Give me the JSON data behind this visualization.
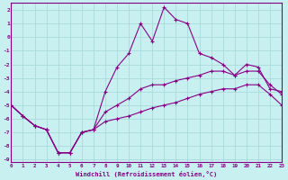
{
  "xlabel": "Windchill (Refroidissement éolien,°C)",
  "background_color": "#c8f0f0",
  "grid_color": "#a8dada",
  "line_color": "#880088",
  "x_hours": [
    0,
    1,
    2,
    3,
    4,
    5,
    6,
    7,
    8,
    9,
    10,
    11,
    12,
    13,
    14,
    15,
    16,
    17,
    18,
    19,
    20,
    21,
    22,
    23
  ],
  "line1": [
    -5.0,
    -5.8,
    -6.5,
    -6.8,
    -8.5,
    -8.5,
    -7.0,
    -6.8,
    -4.0,
    -2.2,
    -1.2,
    1.0,
    -0.3,
    2.2,
    1.3,
    1.0,
    -1.2,
    -1.5,
    -2.0,
    -2.8,
    -2.0,
    -2.2,
    -3.8,
    -4.0
  ],
  "line2": [
    -5.0,
    -5.8,
    -6.5,
    -6.8,
    -8.5,
    -8.5,
    -7.0,
    -6.8,
    -5.5,
    -5.0,
    -4.5,
    -3.8,
    -3.5,
    -3.5,
    -3.2,
    -3.0,
    -2.8,
    -2.5,
    -2.5,
    -2.8,
    -2.5,
    -2.5,
    -3.5,
    -4.2
  ],
  "line3": [
    -5.0,
    -5.8,
    -6.5,
    -6.8,
    -8.5,
    -8.5,
    -7.0,
    -6.8,
    -6.2,
    -6.0,
    -5.8,
    -5.5,
    -5.2,
    -5.0,
    -4.8,
    -4.5,
    -4.2,
    -4.0,
    -3.8,
    -3.8,
    -3.5,
    -3.5,
    -4.2,
    -5.0
  ],
  "xlim": [
    0,
    23
  ],
  "ylim": [
    -9.2,
    2.5
  ],
  "yticks": [
    2,
    1,
    0,
    -1,
    -2,
    -3,
    -4,
    -5,
    -6,
    -7,
    -8,
    -9
  ],
  "xticks": [
    0,
    1,
    2,
    3,
    4,
    5,
    6,
    7,
    8,
    9,
    10,
    11,
    12,
    13,
    14,
    15,
    16,
    17,
    18,
    19,
    20,
    21,
    22,
    23
  ]
}
